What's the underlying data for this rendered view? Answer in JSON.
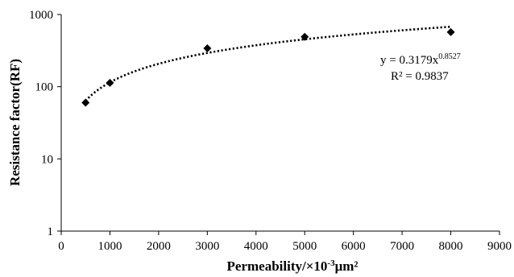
{
  "chart_data": {
    "type": "scatter",
    "xlabel_main": "Permeability/×10",
    "xlabel_exp": "-3",
    "xlabel_unit": "μm²",
    "ylabel": "Resistance factor(RF)",
    "xlim": [
      0,
      9000
    ],
    "ylim": [
      1,
      1000
    ],
    "yscale": "log",
    "x_ticks": [
      "0",
      "1000",
      "2000",
      "3000",
      "4000",
      "5000",
      "6000",
      "7000",
      "8000",
      "9000"
    ],
    "y_ticks": [
      "1",
      "10",
      "100",
      "1000"
    ],
    "points": [
      {
        "x": 500,
        "y": 60
      },
      {
        "x": 1000,
        "y": 113
      },
      {
        "x": 3000,
        "y": 340
      },
      {
        "x": 5000,
        "y": 490
      },
      {
        "x": 8000,
        "y": 570
      }
    ],
    "trendline": {
      "type": "power",
      "coef": 0.3179,
      "exponent": 0.8527,
      "equation_base": "y = 0.3179x",
      "equation_exp": "0.8527",
      "r2_text": "R² = 0.9837"
    },
    "grid": false,
    "colors": {
      "marker": "#000000",
      "trendline": "#000000",
      "axis": "#000000"
    }
  }
}
